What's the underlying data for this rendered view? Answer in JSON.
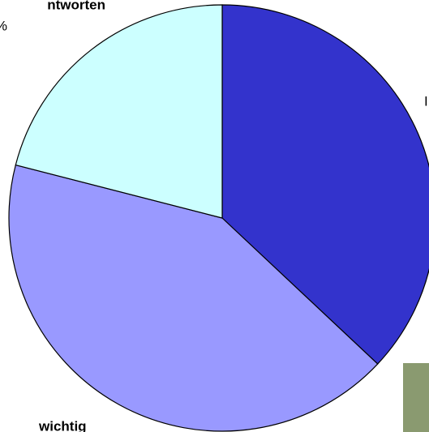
{
  "chart_data": {
    "type": "pie",
    "title": "ntworten",
    "values": [
      37,
      42,
      21
    ],
    "colors": [
      "#3333cc",
      "#9999ff",
      "#ccffff"
    ],
    "annotations": [
      "%",
      "wichtig",
      "I"
    ]
  }
}
